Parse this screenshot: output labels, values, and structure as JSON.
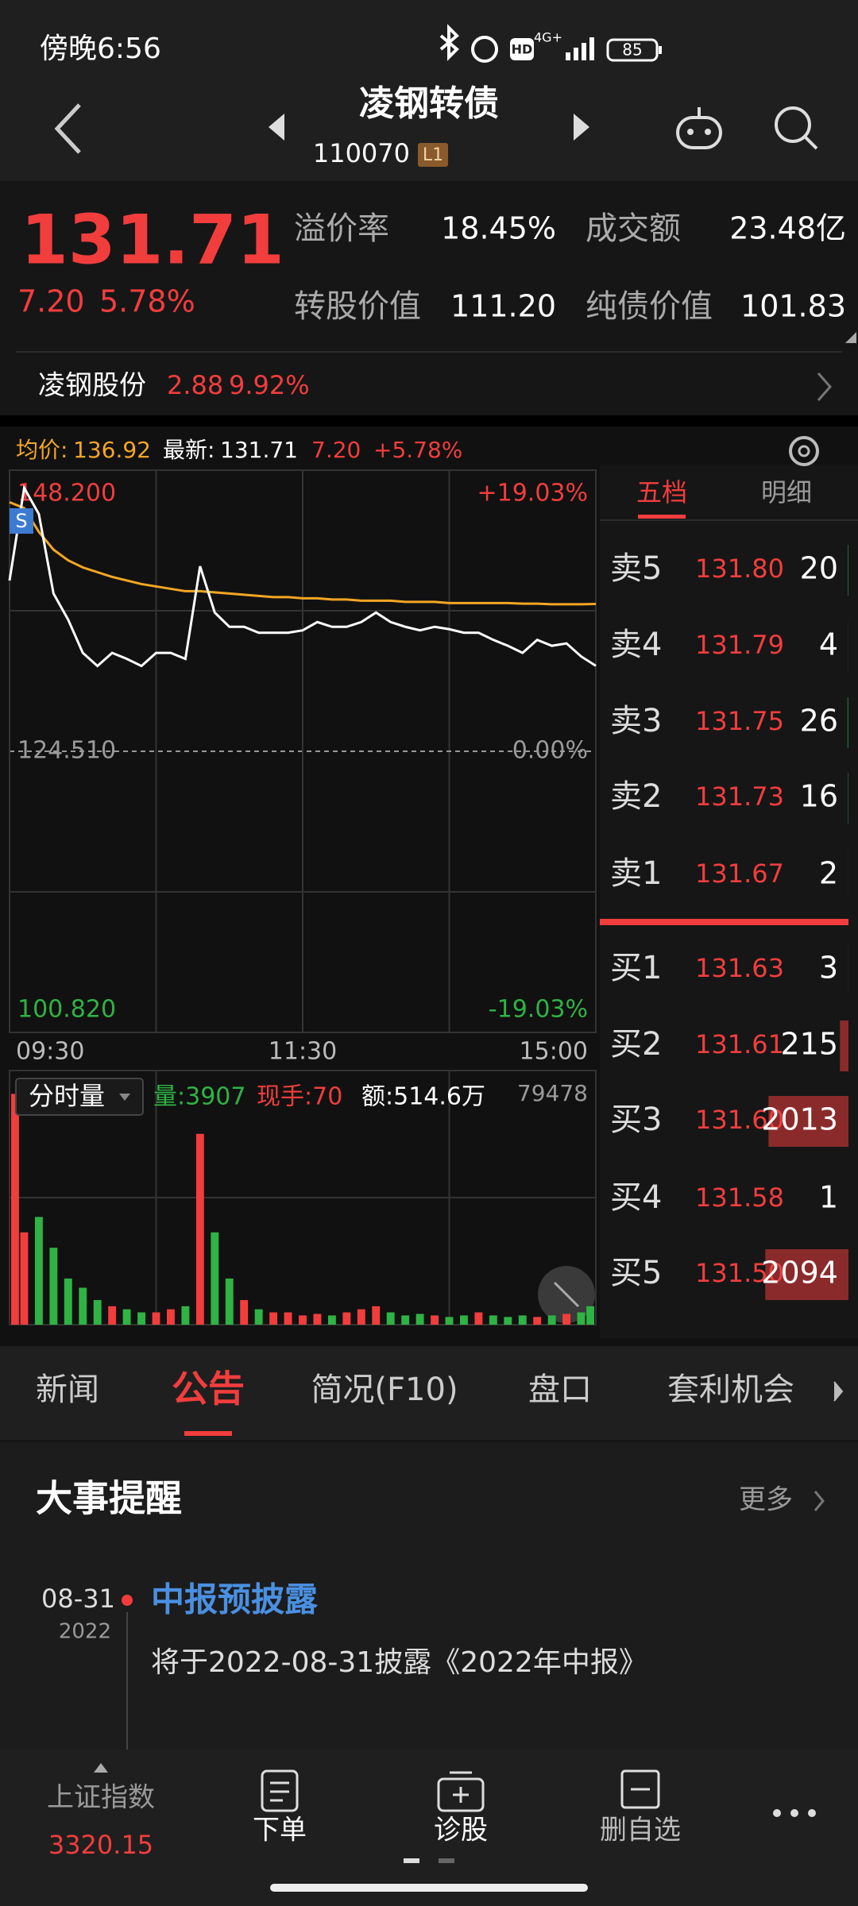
{
  "status_bar": {
    "time": "傍晚6:56",
    "hd": "HD",
    "network": "4G+",
    "battery": 85
  },
  "header": {
    "title": "凌钢转债",
    "code": "110070",
    "level": "L1"
  },
  "quote": {
    "price": "131.71",
    "change": "7.20",
    "change_pct": "5.78%",
    "metrics": [
      {
        "label": "溢价率",
        "value": "18.45%"
      },
      {
        "label": "成交额",
        "value": "23.48亿"
      },
      {
        "label": "转股价值",
        "value": "111.20"
      },
      {
        "label": "纯债价值",
        "value": "101.83"
      }
    ]
  },
  "underlying": {
    "name": "凌钢股份",
    "price": "2.88",
    "change_pct": "9.92%"
  },
  "chart_data": {
    "type": "line",
    "legend": {
      "avg_label": "均价:",
      "avg": "136.92",
      "last_label": "最新:",
      "last": "131.71",
      "change": "7.20",
      "change_pct": "+5.78%"
    },
    "badge": "S",
    "xlim": [
      0,
      240
    ],
    "xticks": [
      {
        "value": 0,
        "label": "09:30"
      },
      {
        "value": 120,
        "label": "11:30"
      },
      {
        "value": 240,
        "label": "15:00"
      }
    ],
    "ylim": [
      100.82,
      148.2
    ],
    "yticks": [
      {
        "value": 148.2,
        "label": "148.200"
      },
      {
        "value": 124.51,
        "label": "124.510"
      },
      {
        "value": 100.82,
        "label": "100.820"
      }
    ],
    "y2lim": [
      -19.03,
      19.03
    ],
    "y2ticks": [
      {
        "value": 19.03,
        "label": "+19.03%"
      },
      {
        "value": 0,
        "label": "0.00%"
      },
      {
        "value": -19.03,
        "label": "-19.03%"
      }
    ],
    "x": [
      0,
      6,
      12,
      18,
      24,
      30,
      36,
      42,
      48,
      54,
      60,
      66,
      72,
      78,
      84,
      90,
      96,
      102,
      108,
      114,
      120,
      126,
      132,
      138,
      144,
      150,
      156,
      162,
      168,
      174,
      180,
      186,
      192,
      198,
      204,
      210,
      216,
      222,
      228,
      234,
      240
    ],
    "series": [
      {
        "color": "#ffffff",
        "values": [
          138.9,
          146.7,
          144.5,
          137.8,
          135.6,
          132.8,
          131.7,
          132.8,
          132.3,
          131.7,
          132.8,
          132.8,
          132.3,
          140.1,
          136.2,
          135.0,
          135.0,
          134.5,
          134.5,
          134.5,
          134.7,
          135.4,
          135.0,
          135.0,
          135.4,
          136.2,
          135.4,
          135.0,
          134.7,
          135.0,
          134.8,
          134.5,
          134.5,
          133.9,
          133.4,
          132.8,
          133.9,
          133.4,
          133.6,
          132.5,
          131.71
        ]
      },
      {
        "color": "#f5a623",
        "values": [
          145.5,
          145.0,
          143.0,
          141.5,
          140.6,
          140.0,
          139.6,
          139.2,
          138.9,
          138.6,
          138.4,
          138.2,
          138.0,
          138.0,
          137.9,
          137.8,
          137.7,
          137.6,
          137.5,
          137.5,
          137.4,
          137.4,
          137.3,
          137.3,
          137.2,
          137.2,
          137.2,
          137.1,
          137.1,
          137.1,
          137.0,
          137.0,
          137.0,
          137.0,
          137.0,
          136.95,
          136.95,
          136.9,
          136.9,
          136.9,
          136.92
        ]
      }
    ],
    "volume": {
      "selector": "分时量",
      "stats": [
        "量:3907",
        "现手:70",
        "额:514.6万"
      ],
      "ylim": [
        0,
        79478
      ],
      "yticks": [
        79478
      ],
      "values": [
        75000,
        30000,
        35000,
        25000,
        15000,
        12000,
        8000,
        6000,
        5000,
        4000,
        4000,
        5000,
        6000,
        62000,
        30000,
        15000,
        8000,
        5000,
        4000,
        4000,
        3000,
        3500,
        3000,
        4000,
        5000,
        6000,
        4000,
        3000,
        3500,
        3000,
        2500,
        3000,
        4000,
        3000,
        2500,
        3000,
        2500,
        3000,
        3500,
        4000,
        6000
      ]
    }
  },
  "order_book": {
    "tabs": [
      "五档",
      "明细"
    ],
    "asks": [
      {
        "label": "卖5",
        "price": "131.80",
        "volume": 20
      },
      {
        "label": "卖4",
        "price": "131.79",
        "volume": 4
      },
      {
        "label": "卖3",
        "price": "131.75",
        "volume": 26
      },
      {
        "label": "卖2",
        "price": "131.73",
        "volume": 16
      },
      {
        "label": "卖1",
        "price": "131.67",
        "volume": 2
      }
    ],
    "bids": [
      {
        "label": "买1",
        "price": "131.63",
        "volume": 3
      },
      {
        "label": "买2",
        "price": "131.61",
        "volume": 215
      },
      {
        "label": "买3",
        "price": "131.60",
        "volume": 2013
      },
      {
        "label": "买4",
        "price": "131.58",
        "volume": 1
      },
      {
        "label": "买5",
        "price": "131.50",
        "volume": 2094
      }
    ]
  },
  "tabs": [
    "新闻",
    "公告",
    "简况(F10)",
    "盘口",
    "套利机会"
  ],
  "events": {
    "title": "大事提醒",
    "more": "更多",
    "items": [
      {
        "date": "08-31",
        "year": "2022",
        "title": "中报预披露",
        "text": "将于2022-08-31披露《2022年中报》"
      }
    ]
  },
  "bottom_nav": {
    "index_name": "上证指数",
    "index_value": "3320.15",
    "items": [
      "下单",
      "诊股",
      "删自选"
    ]
  }
}
